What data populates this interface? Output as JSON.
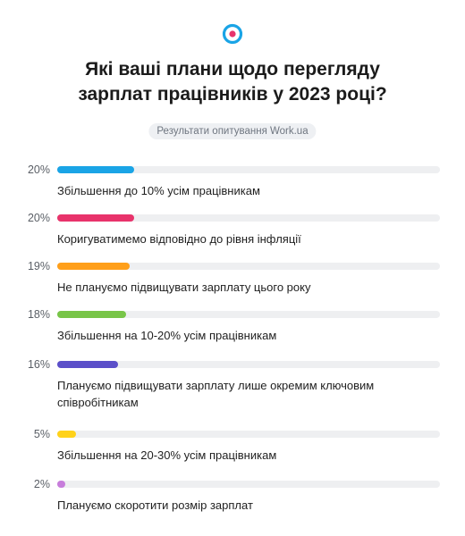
{
  "header": {
    "logo_icon": "target-ring-icon",
    "logo_colors": {
      "ring": "#1aa4e6",
      "dot": "#e8336b"
    },
    "title_line1": "Які ваші плани щодо перегляду",
    "title_line2": "зарплат працівників у 2023 році?",
    "source": "Результати опитування Work.ua"
  },
  "chart_data": {
    "type": "bar",
    "orientation": "horizontal",
    "title": "Які ваші плани щодо перегляду зарплат працівників у 2023 році?",
    "subtitle": "Результати опитування Work.ua",
    "xlim": [
      0,
      100
    ],
    "unit": "%",
    "grid": false,
    "categories": [
      "Збільшення до 10% усім працівникам",
      "Коригуватимемо відповідно до рівня інфляції",
      "Не плануємо підвищувати зарплату цього року",
      "Збільшення на 10-20% усім працівникам",
      "Плануємо підвищувати зарплату лише окремим ключовим співробітникам",
      "Збільшення на 20-30% усім працівникам",
      "Плануємо скоротити розмір зарплат"
    ],
    "values": [
      20,
      20,
      19,
      18,
      16,
      5,
      2
    ],
    "value_labels": [
      "20%",
      "20%",
      "19%",
      "18%",
      "16%",
      "5%",
      "2%"
    ],
    "colors": [
      "#1aa4e6",
      "#e8336b",
      "#ff9f1a",
      "#78c548",
      "#5b4fc9",
      "#ffd21a",
      "#c77ddb"
    ],
    "track_color": "#eeeff1"
  }
}
